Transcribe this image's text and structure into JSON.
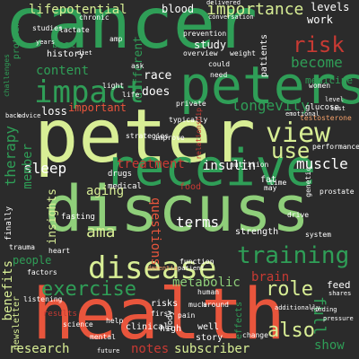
{
  "words": {
    "cancer": "cancer",
    "peter": "peter",
    "health": "health",
    "discuss": "discuss",
    "peters": "peters",
    "receive": "receive",
    "impact": "impact",
    "disease": "disease",
    "training": "training",
    "view": "view",
    "exercise": "exercise",
    "risk": "risk",
    "lifepotential": "lifepotential",
    "importance": "importance",
    "content": "content",
    "become": "become",
    "longevity": "longevity",
    "use": "use",
    "muscle": "muscle",
    "sleep": "sleep",
    "therapy": "therapy",
    "member": "member",
    "role": "role",
    "also": "also",
    "show": "show",
    "research": "research",
    "notes": "notes",
    "subscriber": "subscriber",
    "ama": "ama",
    "terms": "terms",
    "insulin": "insulin",
    "aging": "aging",
    "treatment": "treatment",
    "benefits": "benefits",
    "people": "people",
    "metabolic": "metabolic",
    "blood": "blood",
    "work": "work",
    "levels": "levels",
    "medicine": "medicine",
    "study": "study",
    "race": "race",
    "does": "does",
    "loss": "loss",
    "important": "important",
    "different": "different",
    "best": "best",
    "history": "history",
    "questions": "questions",
    "insights": "insights",
    "brain": "brain",
    "full": "full",
    "feed": "feed",
    "clinical": "clinical",
    "risks": "risks",
    "high": "high",
    "well": "well",
    "story": "story",
    "protein": "protein",
    "chronic": "chronic",
    "studies": "studies",
    "lactate": "lactate",
    "patients": "patients",
    "weight": "weight",
    "women": "women",
    "glucose": "glucose",
    "testosterone": "testosterone",
    "performance": "performance",
    "prostate": "prostate",
    "strength": "strength",
    "system": "system",
    "drive": "drive",
    "nutrition": "nutrition",
    "food": "food",
    "fasting": "fasting",
    "drugs": "drugs",
    "medical": "medical",
    "overview": "overview",
    "prevention": "prevention",
    "delivered": "delivered",
    "conversation": "conversation",
    "emotional": "emotional",
    "typically": "typically",
    "relationship": "relationship",
    "strategies": "strategies",
    "heart": "heart",
    "factors": "factors",
    "trauma": "trauma",
    "finally": "finally",
    "newsletter": "newsletter",
    "listening": "listening",
    "results": "results",
    "science": "science",
    "future": "future",
    "first": "first",
    "human": "human",
    "around": "around",
    "patient": "patient",
    "body": "body",
    "pain": "pain",
    "much": "much",
    "effects": "effects",
    "change": "change",
    "shares": "shares",
    "genetic": "genetic",
    "pressure": "pressure",
    "dementia": "dementia",
    "light": "light",
    "ask": "ask",
    "could": "could",
    "need": "need",
    "improve": "improve",
    "private": "private",
    "life": "life",
    "additionally": "additionally",
    "time": "time",
    "fat": "fat",
    "may": "may",
    "back": "back",
    "advice": "advice",
    "amp": "amp",
    "challenges": "challenges",
    "years": "years",
    "diet": "diet",
    "level": "level",
    "test": "test",
    "help": "help",
    "mental": "mental",
    "function": "function",
    "finding": "finding"
  }
}
